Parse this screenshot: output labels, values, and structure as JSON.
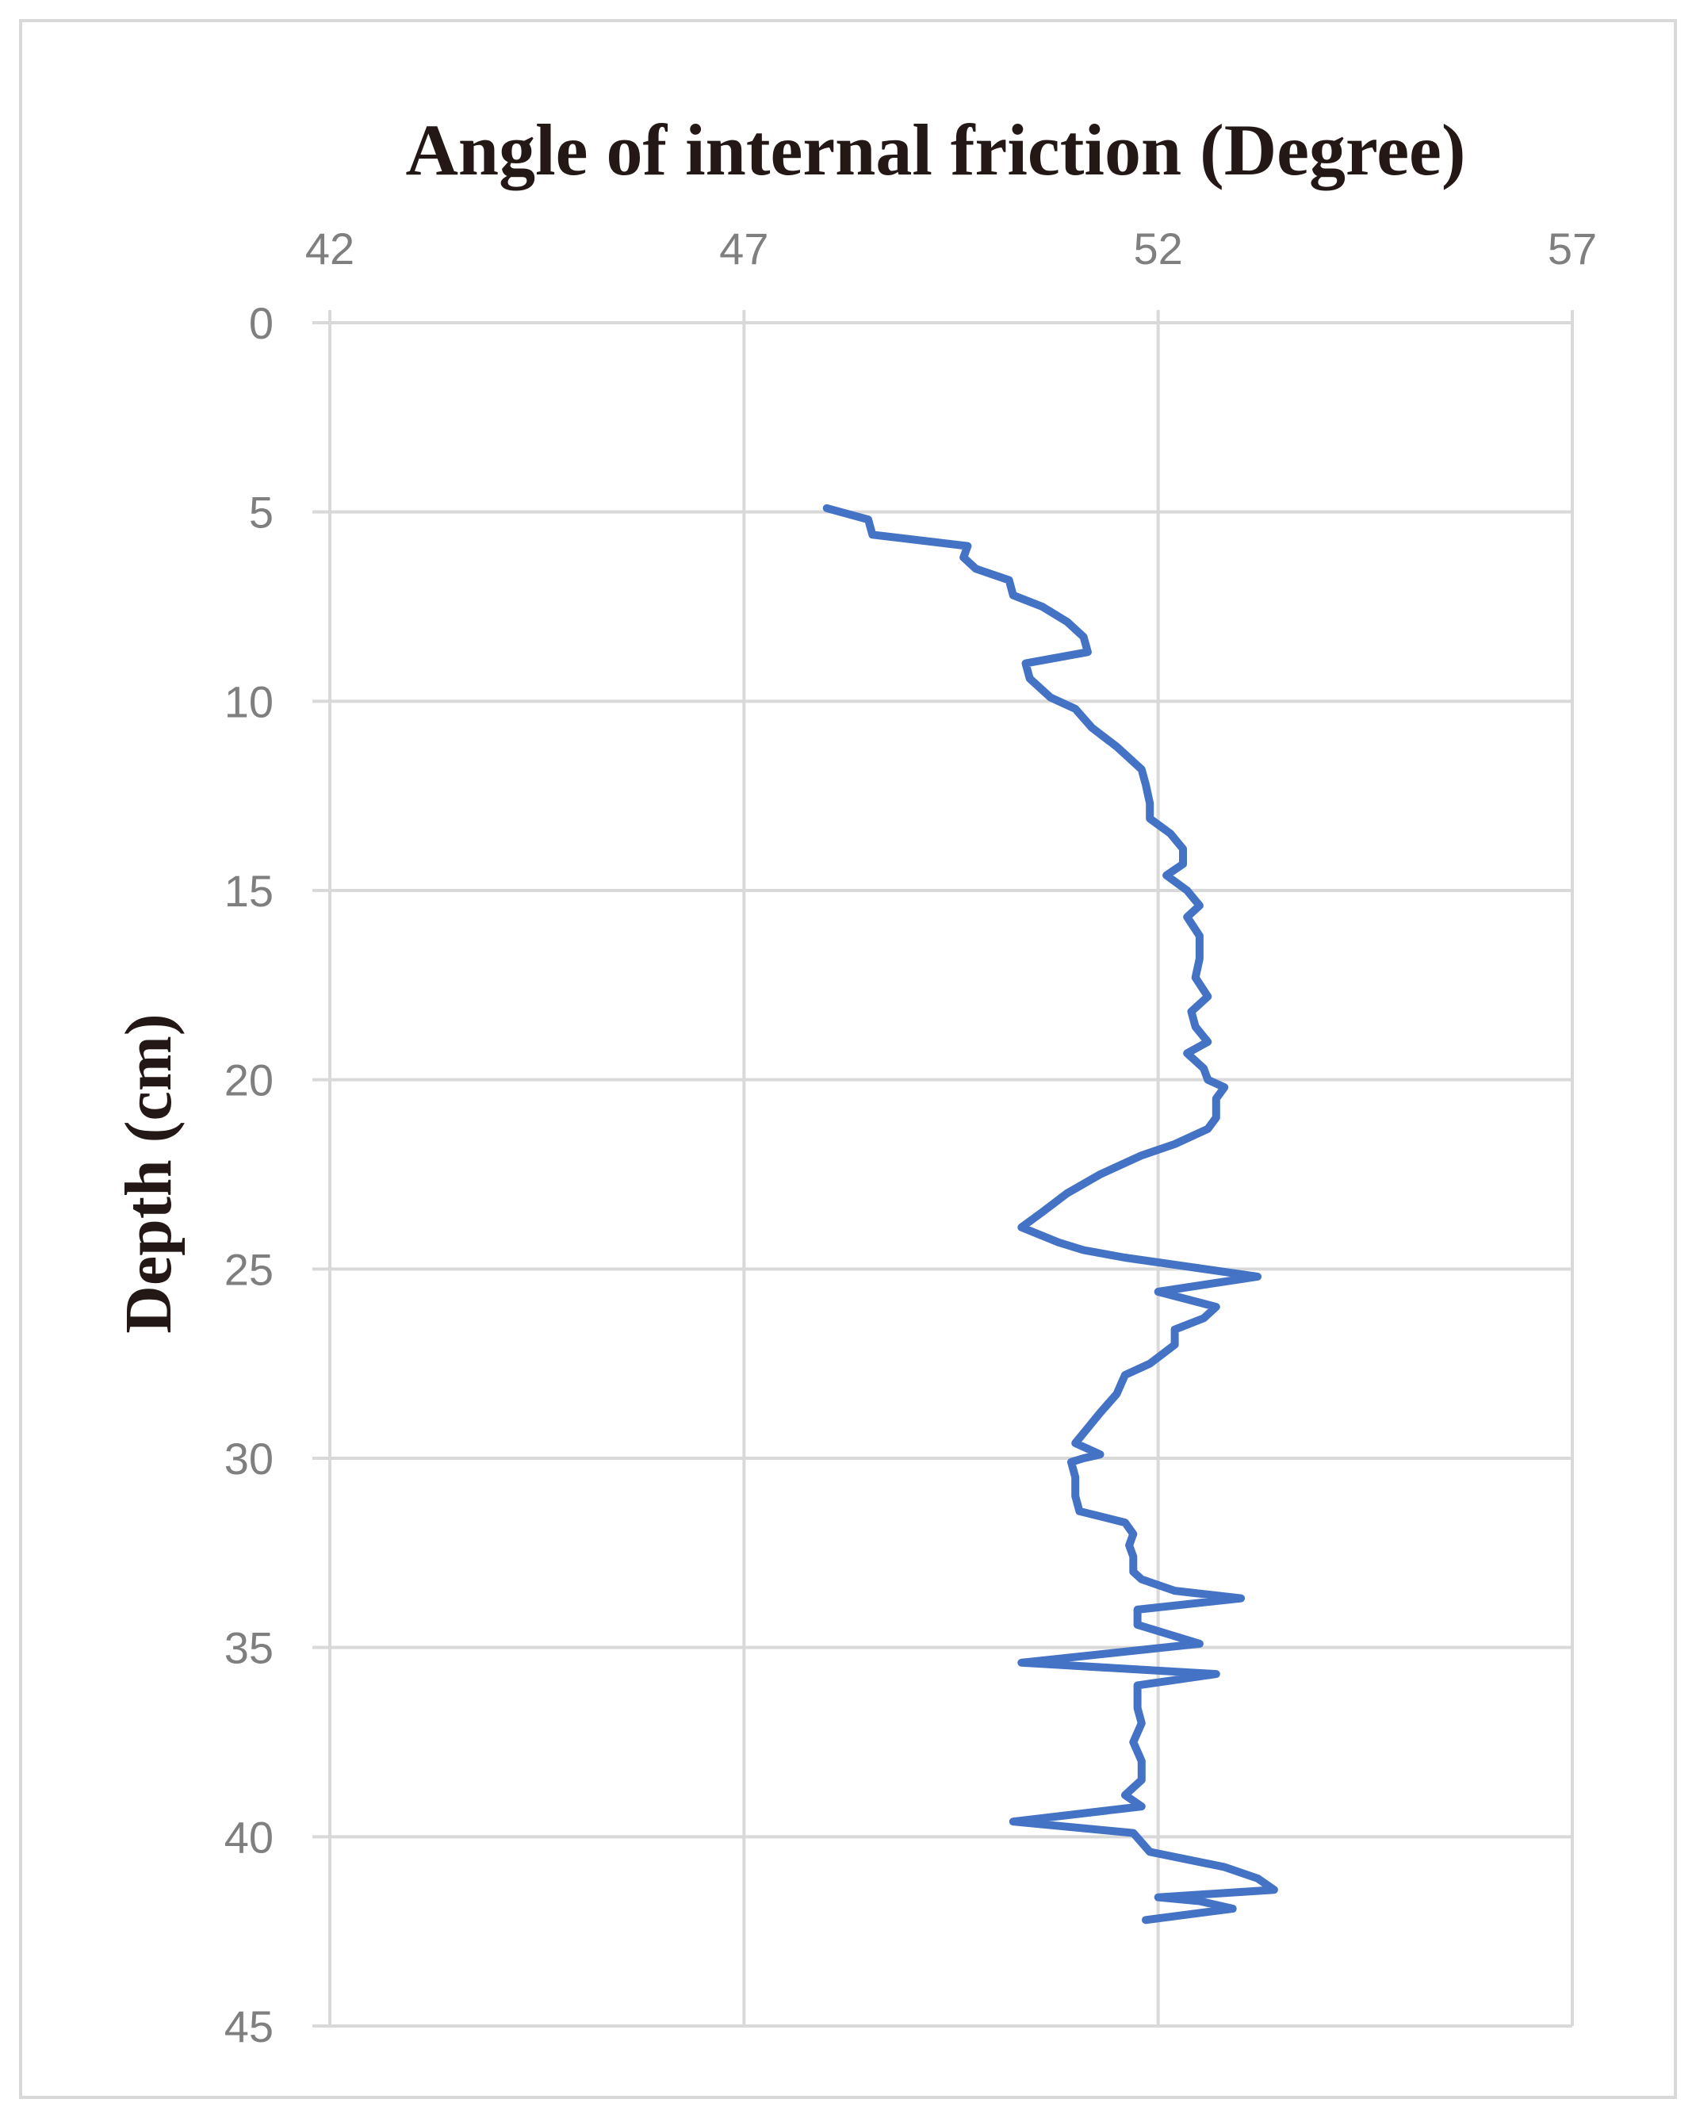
{
  "chart_data": {
    "type": "line",
    "title": "Angle of internal friction (Degree)",
    "xlabel": "",
    "ylabel": "Depth (cm)",
    "xlim": [
      42,
      57
    ],
    "ylim": [
      0,
      45
    ],
    "y_inverted": true,
    "x_axis_position": "top",
    "x_ticks": [
      "42",
      "47",
      "52",
      "57"
    ],
    "y_ticks": [
      "0",
      "5",
      "10",
      "15",
      "20",
      "25",
      "30",
      "35",
      "40",
      "45"
    ],
    "grid": true,
    "legend": "none",
    "series": [
      {
        "color": "#4472c4",
        "points": [
          [
            48.0,
            4.9
          ],
          [
            48.5,
            5.2
          ],
          [
            48.55,
            5.6
          ],
          [
            49.7,
            5.9
          ],
          [
            49.65,
            6.2
          ],
          [
            49.8,
            6.5
          ],
          [
            50.2,
            6.8
          ],
          [
            50.25,
            7.2
          ],
          [
            50.6,
            7.5
          ],
          [
            50.9,
            7.9
          ],
          [
            51.1,
            8.3
          ],
          [
            51.15,
            8.7
          ],
          [
            50.4,
            9.0
          ],
          [
            50.45,
            9.4
          ],
          [
            50.7,
            9.9
          ],
          [
            51.0,
            10.2
          ],
          [
            51.2,
            10.7
          ],
          [
            51.5,
            11.2
          ],
          [
            51.8,
            11.8
          ],
          [
            51.85,
            12.2
          ],
          [
            51.9,
            12.7
          ],
          [
            51.9,
            13.1
          ],
          [
            52.15,
            13.5
          ],
          [
            52.3,
            13.9
          ],
          [
            52.3,
            14.3
          ],
          [
            52.1,
            14.6
          ],
          [
            52.35,
            15.0
          ],
          [
            52.5,
            15.4
          ],
          [
            52.35,
            15.7
          ],
          [
            52.5,
            16.2
          ],
          [
            52.5,
            16.8
          ],
          [
            52.45,
            17.3
          ],
          [
            52.6,
            17.8
          ],
          [
            52.4,
            18.2
          ],
          [
            52.45,
            18.6
          ],
          [
            52.6,
            19.0
          ],
          [
            52.35,
            19.3
          ],
          [
            52.55,
            19.7
          ],
          [
            52.6,
            20.0
          ],
          [
            52.8,
            20.2
          ],
          [
            52.7,
            20.5
          ],
          [
            52.7,
            21.0
          ],
          [
            52.6,
            21.3
          ],
          [
            52.2,
            21.7
          ],
          [
            51.8,
            22.0
          ],
          [
            51.3,
            22.5
          ],
          [
            50.9,
            23.0
          ],
          [
            50.6,
            23.5
          ],
          [
            50.35,
            23.9
          ],
          [
            50.8,
            24.3
          ],
          [
            51.1,
            24.5
          ],
          [
            51.6,
            24.7
          ],
          [
            53.2,
            25.2
          ],
          [
            52.0,
            25.6
          ],
          [
            52.7,
            26.0
          ],
          [
            52.55,
            26.3
          ],
          [
            52.2,
            26.6
          ],
          [
            52.2,
            27.0
          ],
          [
            51.9,
            27.5
          ],
          [
            51.6,
            27.8
          ],
          [
            51.5,
            28.3
          ],
          [
            51.3,
            28.8
          ],
          [
            51.15,
            29.2
          ],
          [
            51.0,
            29.6
          ],
          [
            51.3,
            29.9
          ],
          [
            51.1,
            30.0
          ],
          [
            50.95,
            30.1
          ],
          [
            51.0,
            30.5
          ],
          [
            51.0,
            31.0
          ],
          [
            51.05,
            31.4
          ],
          [
            51.6,
            31.7
          ],
          [
            51.7,
            32.0
          ],
          [
            51.65,
            32.3
          ],
          [
            51.7,
            32.6
          ],
          [
            51.7,
            33.0
          ],
          [
            51.8,
            33.2
          ],
          [
            52.2,
            33.5
          ],
          [
            53.0,
            33.7
          ],
          [
            51.75,
            34.0
          ],
          [
            51.75,
            34.4
          ],
          [
            52.5,
            34.9
          ],
          [
            50.35,
            35.4
          ],
          [
            52.7,
            35.7
          ],
          [
            51.75,
            36.0
          ],
          [
            51.75,
            36.6
          ],
          [
            51.8,
            37.0
          ],
          [
            51.7,
            37.5
          ],
          [
            51.8,
            38.0
          ],
          [
            51.8,
            38.5
          ],
          [
            51.6,
            38.9
          ],
          [
            51.8,
            39.2
          ],
          [
            50.25,
            39.6
          ],
          [
            51.7,
            39.9
          ],
          [
            51.9,
            40.4
          ],
          [
            52.8,
            40.8
          ],
          [
            53.2,
            41.1
          ],
          [
            53.4,
            41.4
          ],
          [
            52.0,
            41.6
          ],
          [
            52.5,
            41.7
          ],
          [
            52.9,
            41.9
          ],
          [
            51.85,
            42.2
          ]
        ]
      }
    ]
  }
}
